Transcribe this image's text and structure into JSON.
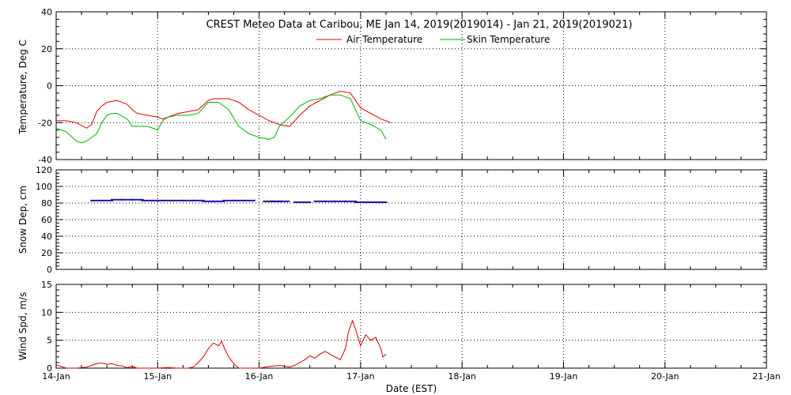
{
  "colors": {
    "air": "#e00000",
    "skin": "#00b000",
    "snow": "#1a1aa0",
    "wind": "#d00000"
  },
  "chart_data": [
    {
      "type": "line",
      "title": "CREST Meteo Data at Caribou, ME   Jan 14, 2019(2019014) - Jan 21, 2019(2019021)",
      "ylabel": "Temperature, Deg C",
      "ylim": [
        -40,
        40
      ],
      "yticks": [
        -40,
        -20,
        0,
        20,
        40
      ],
      "grid": true,
      "legend": "top-center",
      "xlim": [
        0,
        7
      ],
      "series": [
        {
          "name": "Air Temperature",
          "x": [
            0,
            0.1,
            0.2,
            0.3,
            0.35,
            0.4,
            0.45,
            0.5,
            0.6,
            0.7,
            0.75,
            0.8,
            0.9,
            1.0,
            1.05,
            1.1,
            1.2,
            1.3,
            1.4,
            1.5,
            1.55,
            1.6,
            1.7,
            1.75,
            1.8,
            1.85,
            1.9,
            2.0,
            2.1,
            2.2,
            2.3,
            2.4,
            2.5,
            2.6,
            2.7,
            2.75,
            2.8,
            2.9,
            3.0,
            3.1,
            3.2,
            3.3
          ],
          "y": [
            -19,
            -19,
            -20,
            -23,
            -21,
            -14,
            -11,
            -9,
            -8,
            -10,
            -13,
            -15,
            -16,
            -17,
            -18,
            -17,
            -15,
            -14,
            -13,
            -8,
            -7,
            -7,
            -7,
            -8,
            -9,
            -11,
            -13,
            -16,
            -19,
            -21,
            -22,
            -16,
            -11,
            -8,
            -5,
            -4,
            -3,
            -4,
            -12,
            -15,
            -18,
            -20
          ]
        },
        {
          "name": "Skin Temperature",
          "x": [
            0,
            0.1,
            0.2,
            0.25,
            0.3,
            0.4,
            0.45,
            0.5,
            0.55,
            0.6,
            0.7,
            0.75,
            0.8,
            0.9,
            1.0,
            1.05,
            1.1,
            1.2,
            1.3,
            1.4,
            1.45,
            1.5,
            1.55,
            1.6,
            1.7,
            1.8,
            1.85,
            1.9,
            2.0,
            2.1,
            2.15,
            2.2,
            2.3,
            2.4,
            2.5,
            2.6,
            2.7,
            2.8,
            2.9,
            3.0,
            3.1,
            3.2,
            3.25
          ],
          "y": [
            -23,
            -25,
            -30,
            -31,
            -30,
            -26,
            -20,
            -16,
            -15,
            -15,
            -18,
            -22,
            -22,
            -22,
            -24,
            -19,
            -17,
            -16,
            -16,
            -15,
            -12,
            -9,
            -9,
            -9,
            -13,
            -22,
            -24,
            -26,
            -28,
            -29,
            -28,
            -22,
            -17,
            -11,
            -8,
            -7,
            -5,
            -5,
            -7,
            -19,
            -21,
            -24,
            -29
          ]
        }
      ]
    },
    {
      "type": "scatter",
      "ylabel": "Snow Dep, cm",
      "ylim": [
        0,
        120
      ],
      "yticks": [
        0,
        20,
        40,
        60,
        80,
        100,
        120
      ],
      "grid": true,
      "xlim": [
        0,
        7
      ],
      "series": [
        {
          "x": [
            0.4,
            0.5,
            0.6,
            0.7,
            0.8,
            0.9,
            1.0,
            1.1,
            1.2,
            1.3,
            1.4,
            1.5,
            1.6,
            1.7,
            1.8,
            1.9,
            2.1,
            2.17,
            2.24,
            2.4,
            2.45,
            2.6,
            2.7,
            2.8,
            2.9,
            3.0,
            3.1,
            3.2
          ],
          "y": [
            83,
            83,
            84,
            84,
            84,
            83,
            83,
            83,
            83,
            83,
            83,
            82,
            82,
            83,
            83,
            83,
            82,
            82,
            82,
            81,
            81,
            82,
            82,
            82,
            82,
            81,
            81,
            81
          ]
        }
      ]
    },
    {
      "type": "line",
      "ylabel": "Wind Spd, m/s",
      "ylim": [
        0,
        15
      ],
      "yticks": [
        0,
        5,
        10,
        15
      ],
      "grid": true,
      "xlim": [
        0,
        7
      ],
      "xlabel": "Date (EST)",
      "categories": [
        "14-Jan",
        "15-Jan",
        "16-Jan",
        "17-Jan",
        "18-Jan",
        "19-Jan",
        "20-Jan",
        "21-Jan"
      ],
      "series": [
        {
          "x": [
            0,
            0.05,
            0.1,
            0.15,
            0.2,
            0.3,
            0.35,
            0.4,
            0.45,
            0.5,
            0.55,
            0.6,
            0.65,
            0.7,
            0.75,
            0.8,
            0.9,
            1.0,
            1.1,
            1.2,
            1.25,
            1.3,
            1.35,
            1.4,
            1.45,
            1.5,
            1.55,
            1.6,
            1.63,
            1.66,
            1.7,
            1.75,
            1.8,
            1.9,
            2.0,
            2.1,
            2.2,
            2.3,
            2.35,
            2.4,
            2.45,
            2.5,
            2.55,
            2.6,
            2.65,
            2.7,
            2.75,
            2.8,
            2.85,
            2.88,
            2.92,
            2.95,
            3.0,
            3.05,
            3.1,
            3.15,
            3.2,
            3.22,
            3.25
          ],
          "y": [
            0.6,
            0.3,
            0,
            0,
            0,
            0.2,
            0.5,
            0.8,
            0.9,
            0.7,
            0.8,
            0.5,
            0.4,
            0.1,
            0.3,
            0,
            0,
            0,
            0.1,
            0,
            0,
            0,
            0.2,
            1.0,
            2.0,
            3.5,
            4.5,
            4.0,
            4.8,
            3.5,
            2.0,
            0.8,
            0,
            0,
            0,
            0.3,
            0.5,
            0.2,
            0.5,
            1.0,
            1.5,
            2.2,
            1.8,
            2.5,
            3.0,
            2.5,
            2.0,
            1.5,
            3.5,
            6.5,
            8.5,
            7.0,
            4.0,
            6.0,
            5.0,
            5.5,
            3.5,
            2.0,
            2.5
          ]
        }
      ]
    }
  ]
}
